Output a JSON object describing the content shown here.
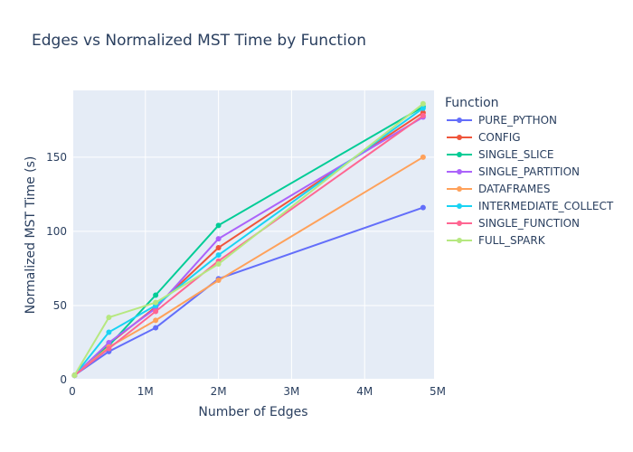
{
  "chart_data": {
    "type": "line",
    "title": "Edges vs Normalized MST Time by Function",
    "xlabel": "Number of Edges",
    "ylabel": "Normalized MST Time (s)",
    "xlim": [
      0,
      4950000
    ],
    "ylim": [
      0,
      195
    ],
    "x_ticks": [
      {
        "value": 0,
        "label": "0"
      },
      {
        "value": 1000000,
        "label": "1M"
      },
      {
        "value": 2000000,
        "label": "2M"
      },
      {
        "value": 3000000,
        "label": "3M"
      },
      {
        "value": 4000000,
        "label": "4M"
      },
      {
        "value": 5000000,
        "label": "5M"
      }
    ],
    "y_ticks": [
      {
        "value": 0,
        "label": "0"
      },
      {
        "value": 50,
        "label": "50"
      },
      {
        "value": 100,
        "label": "100"
      },
      {
        "value": 150,
        "label": "150"
      }
    ],
    "grid": true,
    "legend_title": "Function",
    "legend_position": "right",
    "series": [
      {
        "name": "PURE_PYTHON",
        "color": "#636efa",
        "x": [
          30000,
          500000,
          1140000,
          2000000,
          4800000
        ],
        "y": [
          3,
          19,
          35,
          68,
          116
        ]
      },
      {
        "name": "CONFIG",
        "color": "#EF553B",
        "x": [
          30000,
          500000,
          1140000,
          2000000,
          4800000
        ],
        "y": [
          3,
          24,
          49,
          89,
          180
        ]
      },
      {
        "name": "SINGLE_SLICE",
        "color": "#00cc96",
        "x": [
          30000,
          500000,
          1140000,
          2000000,
          4800000
        ],
        "y": [
          3,
          23,
          57,
          104,
          184
        ]
      },
      {
        "name": "SINGLE_PARTITION",
        "color": "#ab63fa",
        "x": [
          30000,
          500000,
          1140000,
          2000000,
          4800000
        ],
        "y": [
          3,
          25,
          48,
          95,
          177
        ]
      },
      {
        "name": "DATAFRAMES",
        "color": "#FFA15A",
        "x": [
          30000,
          500000,
          1140000,
          2000000,
          4800000
        ],
        "y": [
          3,
          22,
          40,
          67,
          150
        ]
      },
      {
        "name": "INTERMEDIATE_COLLECT",
        "color": "#19d3f3",
        "x": [
          30000,
          500000,
          1140000,
          2000000,
          4800000
        ],
        "y": [
          3,
          32,
          50,
          84,
          183
        ]
      },
      {
        "name": "SINGLE_FUNCTION",
        "color": "#FF6692",
        "x": [
          30000,
          500000,
          1140000,
          2000000,
          4800000
        ],
        "y": [
          3,
          21,
          46,
          80,
          178
        ]
      },
      {
        "name": "FULL_SPARK",
        "color": "#B6E880",
        "x": [
          30000,
          500000,
          1140000,
          2000000,
          4800000
        ],
        "y": [
          3,
          42,
          52,
          78,
          186
        ]
      }
    ]
  }
}
